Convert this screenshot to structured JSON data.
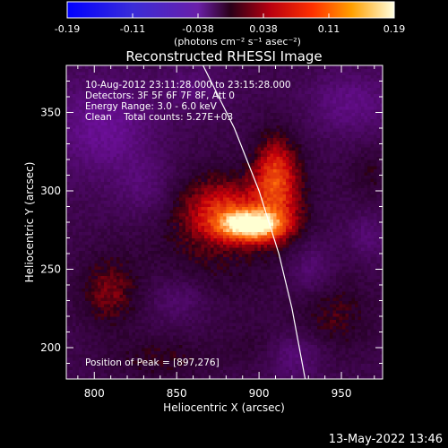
{
  "chart_data": {
    "type": "heatmap",
    "title": "Reconstructed RHESSI Image",
    "xlabel": "Heliocentric X (arcsec)",
    "ylabel": "Heliocentric Y (arcsec)",
    "xlim": [
      783,
      975
    ],
    "ylim": [
      180,
      380
    ],
    "x_ticks": [
      800,
      850,
      900,
      950
    ],
    "y_ticks": [
      200,
      250,
      300,
      350
    ],
    "colorbar": {
      "ticks": [
        "-0.19",
        "-0.11",
        "-0.038",
        "0.038",
        "0.11",
        "0.19"
      ],
      "range": [
        -0.19,
        0.19
      ],
      "unit_label": "(photons cm⁻² s⁻¹ asec⁻²)"
    },
    "annotations": [
      "10-Aug-2012 23:11:28.000 to 23:15:28.000",
      "Detectors: 3F 5F 6F 7F 8F, Att 0",
      "Energy Range: 3.0 - 6.0 keV",
      "Clean    Total counts: 5.27E+03"
    ],
    "peak_label": "Position of Peak = [897,276]",
    "peak": [
      897,
      276
    ],
    "limb_curve": [
      [
        866,
        380
      ],
      [
        885,
        340
      ],
      [
        900,
        300
      ],
      [
        912,
        260
      ],
      [
        920,
        225
      ],
      [
        928,
        180
      ]
    ],
    "sources": [
      {
        "x": 895,
        "y": 277,
        "sx": 14,
        "sy": 7,
        "amp": 0.19
      },
      {
        "x": 878,
        "y": 288,
        "sx": 18,
        "sy": 14,
        "amp": 0.09
      },
      {
        "x": 908,
        "y": 310,
        "sx": 9,
        "sy": 18,
        "amp": 0.1
      },
      {
        "x": 915,
        "y": 295,
        "sx": 12,
        "sy": 25,
        "amp": 0.06
      },
      {
        "x": 870,
        "y": 270,
        "sx": 28,
        "sy": 30,
        "amp": 0.05
      },
      {
        "x": 808,
        "y": 235,
        "sx": 13,
        "sy": 17,
        "amp": 0.075
      },
      {
        "x": 945,
        "y": 220,
        "sx": 17,
        "sy": 18,
        "amp": 0.055
      },
      {
        "x": 965,
        "y": 310,
        "sx": 10,
        "sy": 12,
        "amp": 0.04
      },
      {
        "x": 840,
        "y": 192,
        "sx": 22,
        "sy": 10,
        "amp": 0.045
      },
      {
        "x": 900,
        "y": 200,
        "sx": 16,
        "sy": 10,
        "amp": 0.03
      }
    ],
    "negative_regions": [
      {
        "x": 805,
        "y": 340,
        "sx": 22,
        "sy": 22,
        "amp": -0.09
      },
      {
        "x": 955,
        "y": 355,
        "sx": 18,
        "sy": 14,
        "amp": -0.07
      },
      {
        "x": 830,
        "y": 300,
        "sx": 12,
        "sy": 14,
        "amp": -0.05
      },
      {
        "x": 930,
        "y": 250,
        "sx": 10,
        "sy": 12,
        "amp": -0.06
      },
      {
        "x": 850,
        "y": 230,
        "sx": 12,
        "sy": 10,
        "amp": -0.05
      },
      {
        "x": 920,
        "y": 195,
        "sx": 12,
        "sy": 10,
        "amp": -0.07
      },
      {
        "x": 965,
        "y": 270,
        "sx": 8,
        "sy": 10,
        "amp": -0.05
      },
      {
        "x": 860,
        "y": 365,
        "sx": 14,
        "sy": 10,
        "amp": -0.05
      }
    ]
  },
  "footer": {
    "timestamp": "13-May-2022 13:46"
  },
  "colors": {
    "background": "#000000",
    "axis": "#ffffff",
    "limb": "#ffffff"
  }
}
